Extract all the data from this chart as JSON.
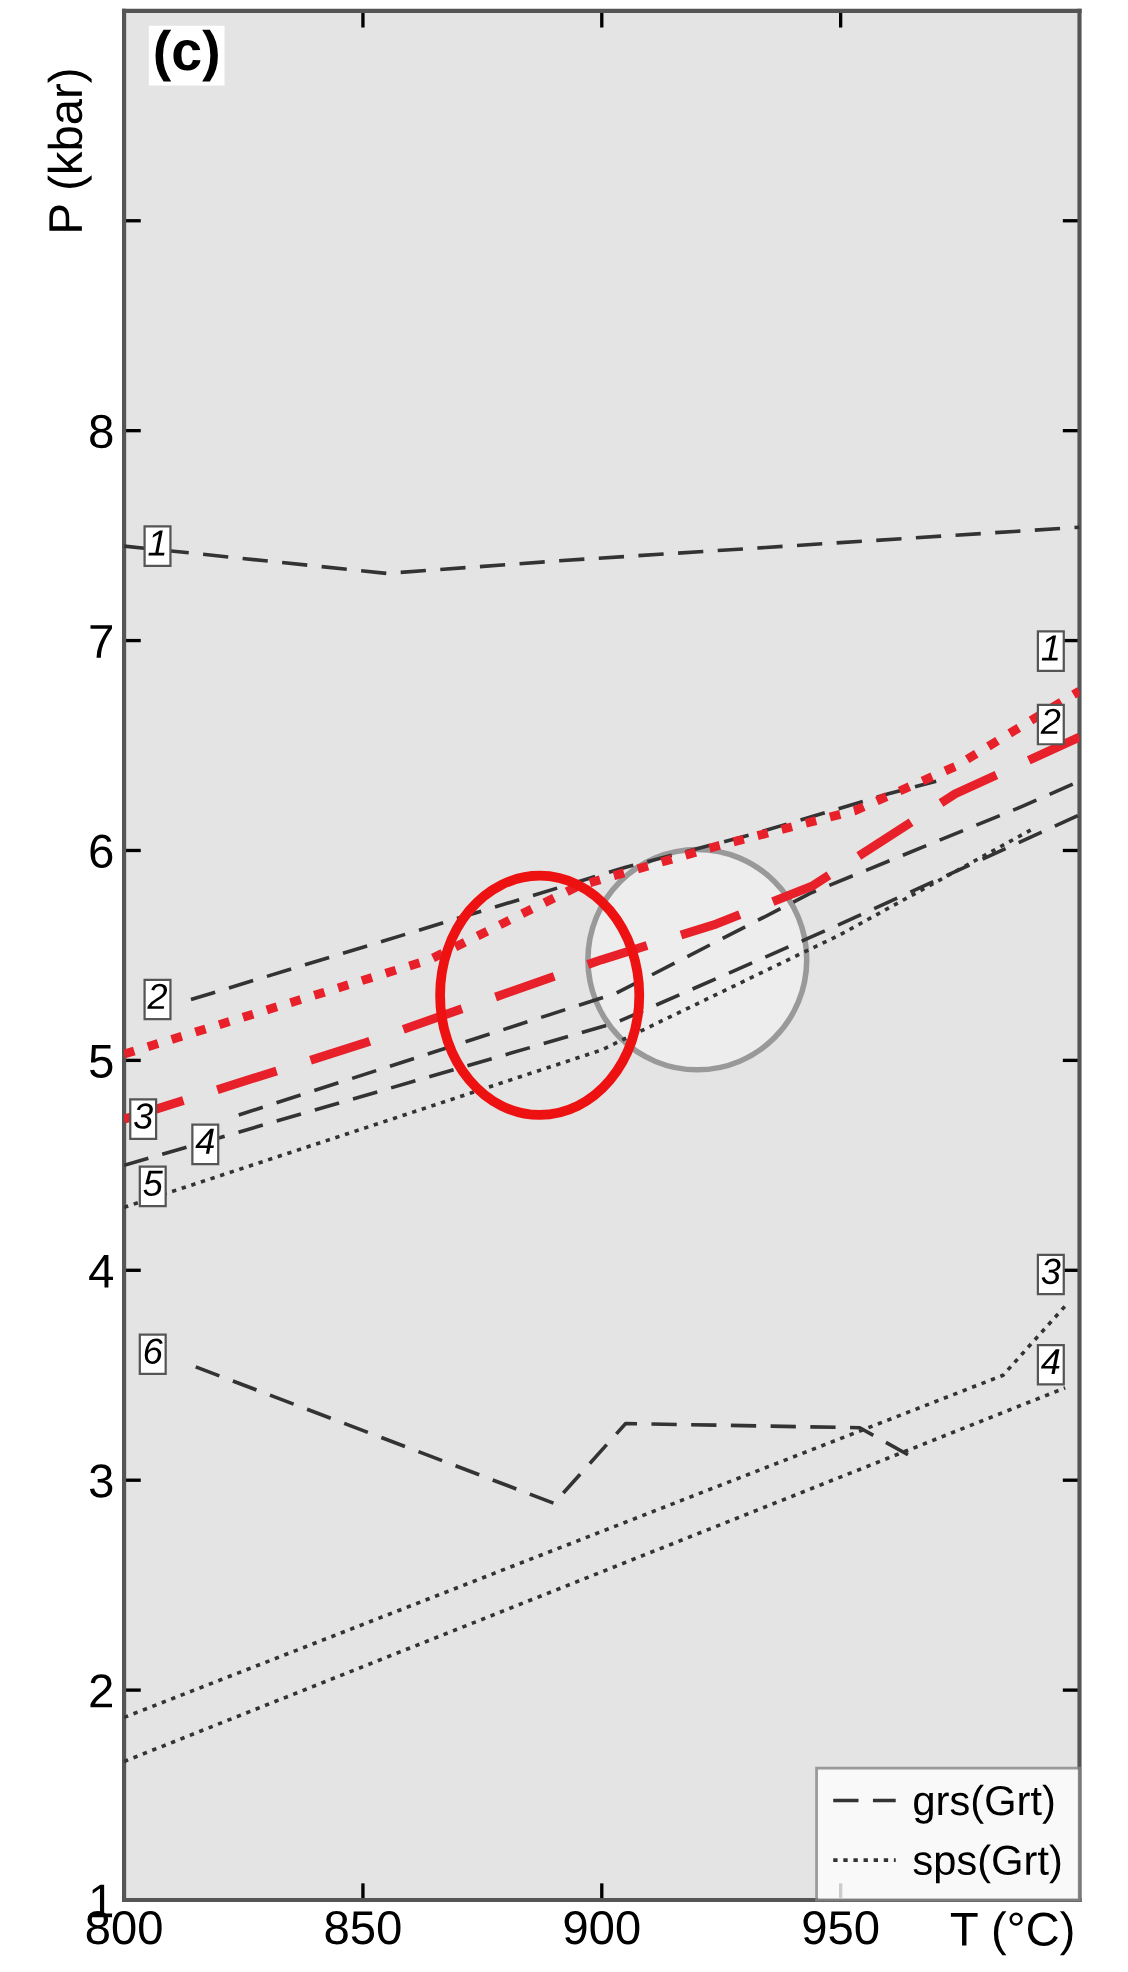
{
  "chart_data": {
    "type": "line",
    "title": "(c)",
    "xlabel": "T (°C)",
    "ylabel": "P (kbar)",
    "xlim": [
      800,
      1000
    ],
    "ylim": [
      1,
      10
    ],
    "xticks": [
      800,
      850,
      900,
      950
    ],
    "yticks": [
      1,
      2,
      3,
      4,
      5,
      6,
      7,
      8,
      {
        "value": 9,
        "label": null
      }
    ],
    "grid": false,
    "legend": "bottom right",
    "marker": "none",
    "series": [
      {
        "name": "grs(Grt)",
        "color": "#333333",
        "line_style": "dashed",
        "x": [
          800,
          855,
          891,
          1000
        ],
        "values": [
          7.45,
          7.32,
          7.38,
          7.54
        ]
      },
      {
        "color": "#333333",
        "line_style": "dashed",
        "x": [
          814,
          905,
          932,
          960,
          970
        ],
        "values": [
          5.29,
          5.92,
          6.08,
          6.27,
          6.33
        ]
      },
      {
        "color": "#333333",
        "line_style": "dashed",
        "x": [
          824,
          903,
          944,
          988,
          1000
        ],
        "values": [
          4.74,
          5.32,
          5.8,
          6.21,
          6.33
        ]
      },
      {
        "color": "#333333",
        "line_style": "dashed",
        "x": [
          800,
          903,
          950,
          1000
        ],
        "values": [
          4.5,
          5.18,
          5.65,
          6.17
        ]
      },
      {
        "color": "#333333",
        "line_style": "dashed",
        "x": [
          815,
          890,
          905,
          954,
          965
        ],
        "values": [
          3.54,
          2.89,
          3.27,
          3.25,
          3.11
        ]
      },
      {
        "name": "sps(Grt)",
        "color": "#333333",
        "line_style": "dotted",
        "x": [
          800,
          900,
          950,
          990
        ],
        "values": [
          4.3,
          5.05,
          5.6,
          6.1
        ]
      },
      {
        "color": "#333333",
        "line_style": "dotted",
        "x": [
          800,
          984,
          997
        ],
        "values": [
          1.87,
          3.5,
          3.83
        ]
      },
      {
        "color": "#333333",
        "line_style": "dotted",
        "x": [
          800,
          997
        ],
        "values": [
          1.66,
          3.44
        ]
      },
      {
        "color": "#e8202a",
        "line_style": "dotted",
        "x": [
          800,
          864,
          895,
          924,
          953,
          974,
          1000
        ],
        "values": [
          5.03,
          5.48,
          5.83,
          6.02,
          6.19,
          6.4,
          6.76
        ]
      },
      {
        "color": "#e8202a",
        "line_style": "dashed",
        "x": [
          800,
          850,
          900,
          924,
          944,
          974,
          1000
        ],
        "values": [
          4.72,
          5.08,
          5.48,
          5.65,
          5.83,
          6.27,
          6.54
        ]
      }
    ],
    "annotations": [
      {
        "text": "1",
        "x": 807,
        "y": 7.45
      },
      {
        "text": "2",
        "x": 807,
        "y": 5.29
      },
      {
        "text": "3",
        "x": 804,
        "y": 4.72
      },
      {
        "text": "4",
        "x": 817,
        "y": 4.6
      },
      {
        "text": "5",
        "x": 806,
        "y": 4.4
      },
      {
        "text": "6",
        "x": 806,
        "y": 3.6
      },
      {
        "text": "1",
        "x": 994,
        "y": 6.95
      },
      {
        "text": "2",
        "x": 994,
        "y": 6.6
      },
      {
        "text": "3",
        "x": 994,
        "y": 3.98
      },
      {
        "text": "4",
        "x": 994,
        "y": 3.55
      }
    ]
  }
}
